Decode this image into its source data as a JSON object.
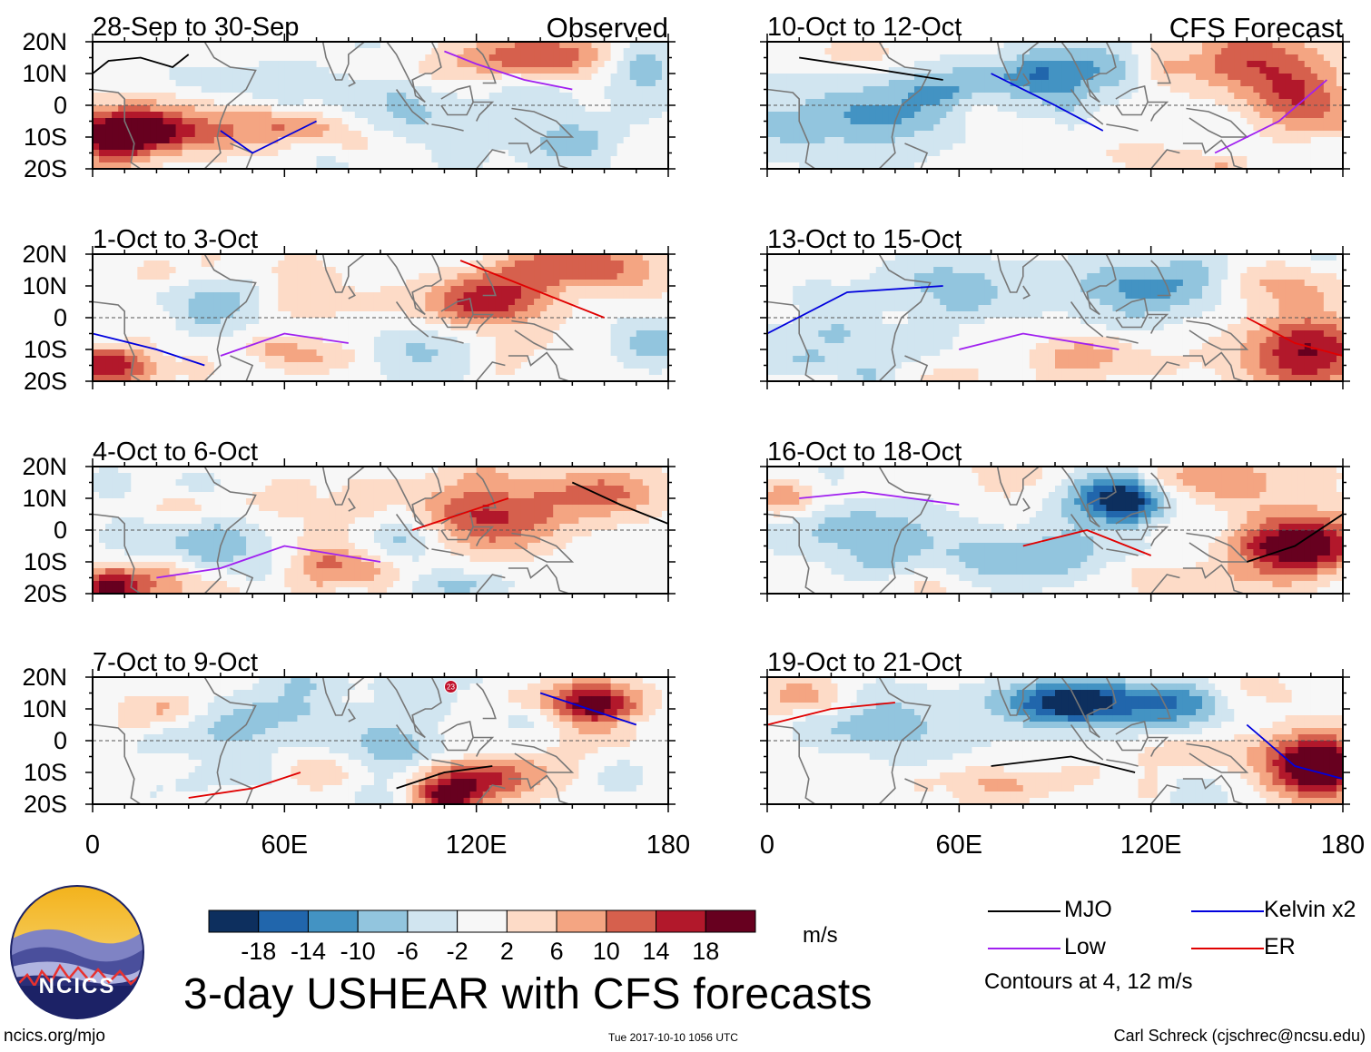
{
  "chart_data": {
    "type": "heatmap",
    "title": "3-day USHEAR with CFS forecasts",
    "variable": "USHEAR",
    "units": "m/s",
    "columns": [
      {
        "label": "Observed",
        "panels": [
          "28-Sep to 30-Sep",
          "1-Oct to 3-Oct",
          "4-Oct to 6-Oct",
          "7-Oct to 9-Oct"
        ]
      },
      {
        "label": "CFS Forecast",
        "panels": [
          "10-Oct to 12-Oct",
          "13-Oct to 15-Oct",
          "16-Oct to 18-Oct",
          "19-Oct to 21-Oct"
        ]
      }
    ],
    "lat_ticks": [
      "20N",
      "10N",
      "0",
      "10S",
      "20S"
    ],
    "lon_ticks": [
      "0",
      "60E",
      "120E",
      "180"
    ],
    "xlim": [
      0,
      180
    ],
    "ylim": [
      -20,
      20
    ],
    "colorbar": {
      "levels": [
        -18,
        -14,
        -10,
        -6,
        -2,
        2,
        6,
        10,
        14,
        18
      ],
      "labels": [
        "-18",
        "-14",
        "-10",
        "-6",
        "-2",
        "2",
        "6",
        "10",
        "14",
        "18"
      ],
      "colors": [
        "#0d2f5e",
        "#2166ac",
        "#4393c3",
        "#92c5de",
        "#d1e5f0",
        "#f7f7f7",
        "#fddbc7",
        "#f4a582",
        "#d6604d",
        "#b2182b",
        "#67001f"
      ]
    },
    "contour_legend": [
      {
        "name": "MJO",
        "color": "#000000"
      },
      {
        "name": "Kelvin x2",
        "color": "#0000dd"
      },
      {
        "name": "Low",
        "color": "#a020f0"
      },
      {
        "name": "ER",
        "color": "#e00000"
      }
    ],
    "contour_note": "Contours at 4, 12 m/s",
    "storm_marker": "23"
  },
  "branding": {
    "logo_text": "NCICS",
    "site": "ncics.org/mjo",
    "timestamp": "Tue 2017-10-10 1056 UTC",
    "author": "Carl Schreck (cjschrec@ncsu.edu)"
  }
}
